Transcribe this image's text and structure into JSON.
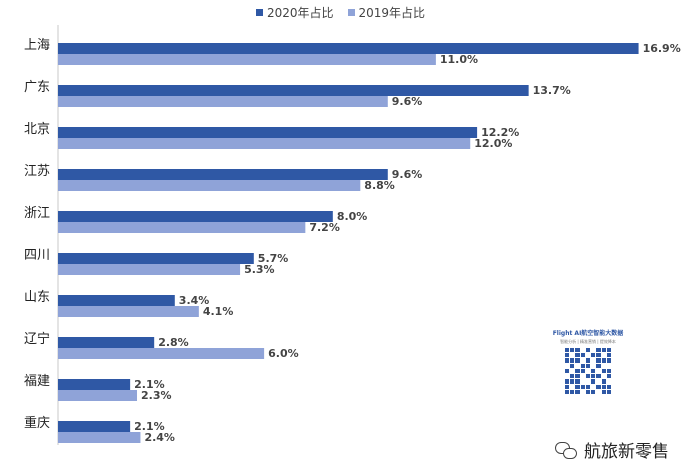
{
  "chart_data": {
    "type": "bar",
    "orientation": "horizontal",
    "categories": [
      "上海",
      "广东",
      "北京",
      "江苏",
      "浙江",
      "四川",
      "山东",
      "辽宁",
      "福建",
      "重庆"
    ],
    "series": [
      {
        "name": "2020年占比",
        "values": [
          16.9,
          13.7,
          12.2,
          9.6,
          8.0,
          5.7,
          3.4,
          2.8,
          2.1,
          2.1
        ],
        "labels": [
          "16.9%",
          "13.7%",
          "12.2%",
          "9.6%",
          "8.0%",
          "5.7%",
          "3.4%",
          "2.8%",
          "2.1%",
          "2.1%"
        ],
        "color": "#2f58a5"
      },
      {
        "name": "2019年占比",
        "values": [
          11.0,
          9.6,
          12.0,
          8.8,
          7.2,
          5.3,
          4.1,
          6.0,
          2.3,
          2.4
        ],
        "labels": [
          "11.0%",
          "9.6%",
          "12.0%",
          "8.8%",
          "7.2%",
          "5.3%",
          "4.1%",
          "6.0%",
          "2.3%",
          "2.4%"
        ],
        "color": "#8fa3d8"
      }
    ],
    "xlim": [
      0,
      17
    ],
    "grid": false,
    "legend_position": "top"
  },
  "watermark": {
    "qr_title": "Flight AI航空智能大数据",
    "qr_subtitle": "智能分析 | 精准营销 | 提效降本",
    "brand_text": "航旅新零售"
  }
}
